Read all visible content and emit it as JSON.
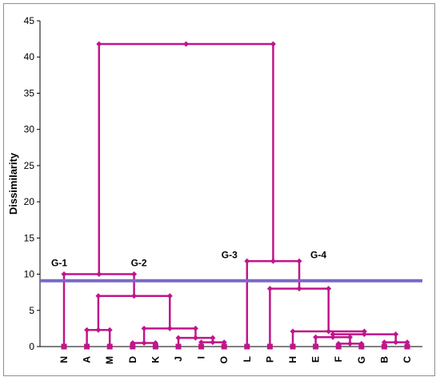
{
  "chart_data": {
    "type": "dendrogram",
    "ylabel": "Dissimilarity",
    "ylim": [
      0,
      45
    ],
    "yticks": [
      0,
      5,
      10,
      15,
      20,
      25,
      30,
      35,
      40,
      45
    ],
    "grid": false,
    "cut_line": {
      "value": 9.1,
      "color": "#7b68c8"
    },
    "link_color": "#c0158a",
    "leaves": [
      "N",
      "A",
      "M",
      "D",
      "K",
      "J",
      "I",
      "O",
      "L",
      "P",
      "H",
      "E",
      "F",
      "G",
      "B",
      "C"
    ],
    "merges": [
      {
        "a": "F",
        "b": "G",
        "height": 0.4
      },
      {
        "a": "B",
        "b": "C",
        "height": 0.6
      },
      {
        "a": "D",
        "b": "K",
        "height": 0.5
      },
      {
        "a": "I",
        "b": "O",
        "height": 0.6
      },
      {
        "a": "E",
        "b": "(F,G)",
        "height": 1.3
      },
      {
        "a": "J",
        "b": "(I,O)",
        "height": 1.2
      },
      {
        "a": "(E,F,G)",
        "b": "(B,C)",
        "height": 1.7
      },
      {
        "a": "A",
        "b": "M",
        "height": 2.3
      },
      {
        "a": "(D,K)",
        "b": "(J,I,O)",
        "height": 2.5
      },
      {
        "a": "H",
        "b": "(E,F,G,B,C)",
        "height": 2.1
      },
      {
        "a": "(A,M)",
        "b": "(D,K,J,I,O)",
        "height": 7.0
      },
      {
        "a": "P",
        "b": "(H,E,F,G,B,C)",
        "height": 8.0
      },
      {
        "a": "N",
        "b": "(A,M,D,K,J,I,O)",
        "height": 10.0
      },
      {
        "a": "L",
        "b": "(P,H,E,F,G,B,C)",
        "height": 11.8
      },
      {
        "a": "(N...O)",
        "b": "(L...C)",
        "height": 41.8
      }
    ],
    "group_labels": [
      {
        "text": "G-1",
        "near": "N"
      },
      {
        "text": "G-2",
        "near": "(A,M,D,K,J,I,O)"
      },
      {
        "text": "G-3",
        "near": "L"
      },
      {
        "text": "G-4",
        "near": "(P,H,E,F,G,B,C)"
      }
    ]
  }
}
